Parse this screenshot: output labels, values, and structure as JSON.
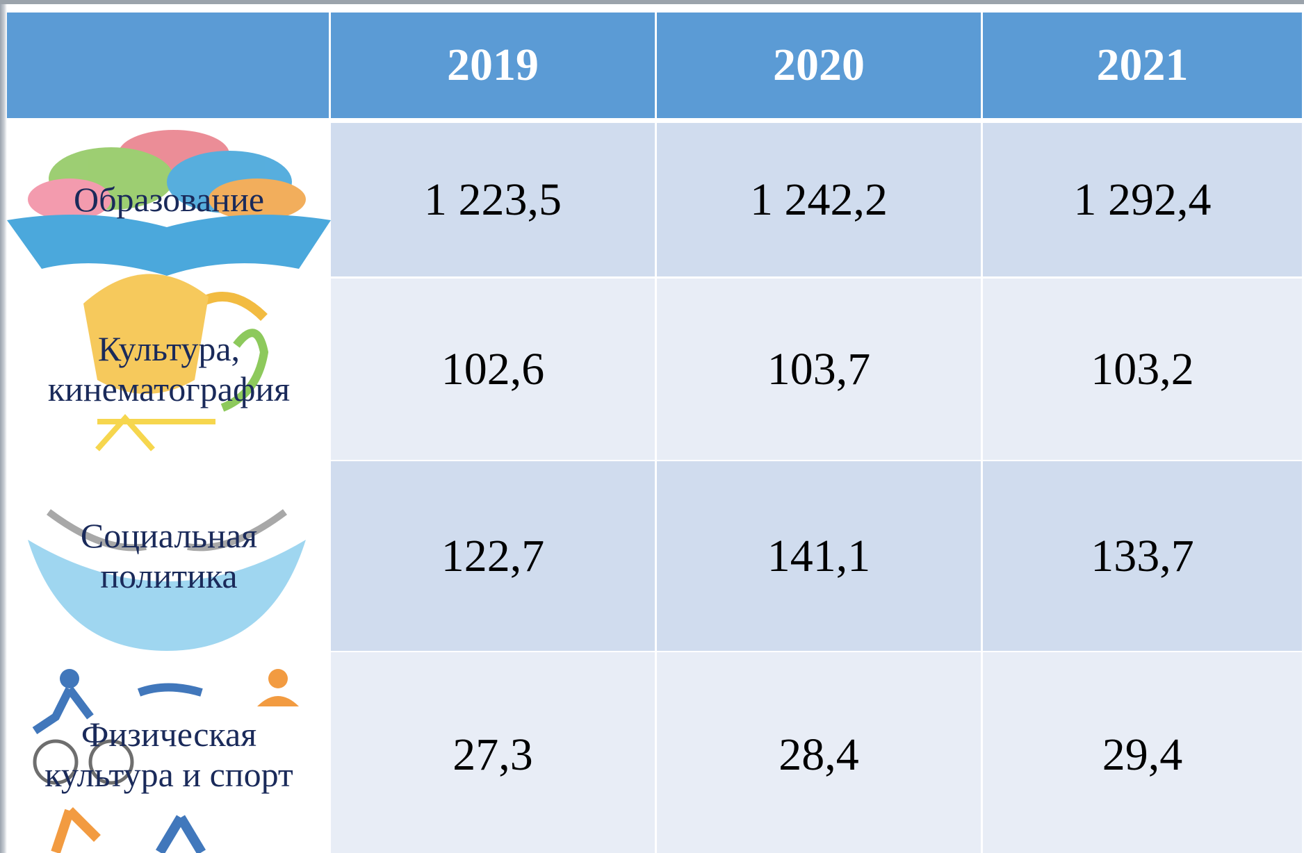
{
  "table": {
    "header": [
      "2019",
      "2020",
      "2021"
    ],
    "rows": [
      {
        "label": "Образование",
        "values": [
          "1 223,5",
          "1 242,2",
          "1 292,4"
        ]
      },
      {
        "label": "Культура, кинематография",
        "values": [
          "102,6",
          "103,7",
          "103,2"
        ]
      },
      {
        "label": "Социальная политика",
        "values": [
          "122,7",
          "141,1",
          "133,7"
        ]
      },
      {
        "label": "Физическая культура и спорт",
        "values": [
          "27,3",
          "28,4",
          "29,4"
        ]
      }
    ]
  }
}
